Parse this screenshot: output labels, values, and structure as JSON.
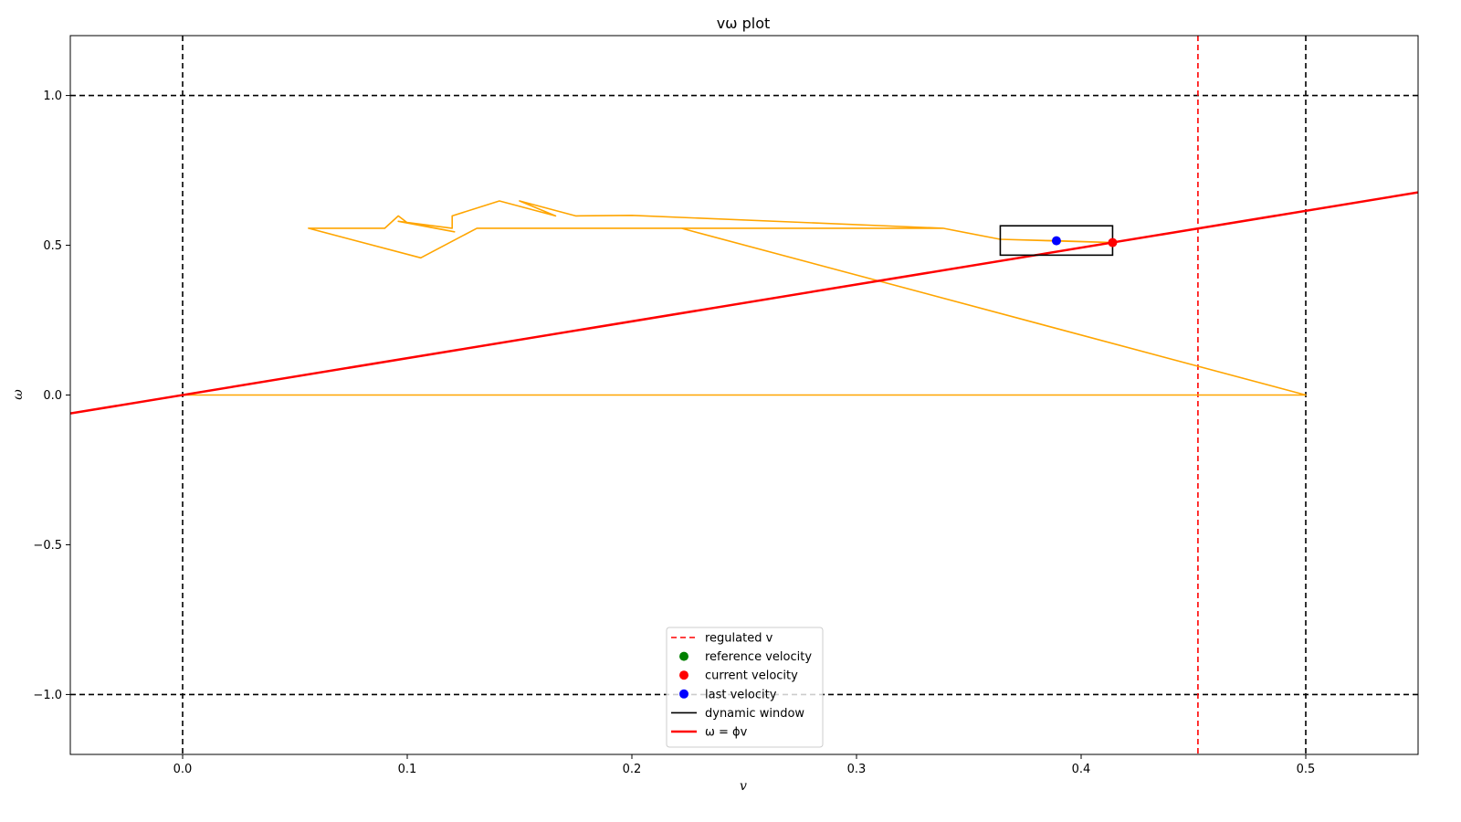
{
  "chart_data": {
    "type": "line",
    "title": "vω plot",
    "xlabel": "v",
    "ylabel": "ω",
    "xlim": [
      -0.05,
      0.55
    ],
    "ylim": [
      -1.2,
      1.2
    ],
    "x_ticks": [
      0.0,
      0.1,
      0.2,
      0.3,
      0.4,
      0.5
    ],
    "x_tick_labels": [
      "0.0",
      "0.1",
      "0.2",
      "0.3",
      "0.4",
      "0.5"
    ],
    "y_ticks": [
      -1.0,
      -0.5,
      0.0,
      0.5,
      1.0
    ],
    "y_tick_labels": [
      "−1.0",
      "−0.5",
      "0.0",
      "0.5",
      "1.0"
    ],
    "grid": false,
    "legend_position": "lower center",
    "colors": {
      "trajectory": "#ffa500",
      "regulated": "#ff0000",
      "bounds": "#000000",
      "reference": "#008000",
      "current": "#ff0000",
      "last": "#0000ff",
      "window": "#000000",
      "phi_line": "#ff0000"
    },
    "bounds": {
      "v": [
        0.0,
        0.5
      ],
      "omega": [
        -1.0,
        1.0
      ]
    },
    "regulated_v": 0.452,
    "phi": 1.23,
    "dynamic_window": {
      "v": [
        0.364,
        0.414
      ],
      "omega": [
        0.467,
        0.565
      ]
    },
    "current_velocity": {
      "v": 0.414,
      "omega": 0.509
    },
    "last_velocity": {
      "v": 0.389,
      "omega": 0.515
    },
    "reference_velocity": null,
    "trajectory": [
      [
        0.0,
        0.0
      ],
      [
        0.5,
        0.0
      ],
      [
        0.222,
        0.557
      ],
      [
        0.3385,
        0.557
      ],
      [
        0.364,
        0.52
      ],
      [
        0.389,
        0.515
      ],
      [
        0.414,
        0.509
      ],
      [
        0.364,
        0.52
      ],
      [
        0.3385,
        0.557
      ],
      [
        0.2,
        0.6
      ],
      [
        0.175,
        0.598
      ],
      [
        0.15,
        0.648
      ],
      [
        0.166,
        0.598
      ],
      [
        0.141,
        0.648
      ],
      [
        0.12,
        0.598
      ],
      [
        0.12,
        0.557
      ],
      [
        0.096,
        0.58
      ],
      [
        0.121,
        0.545
      ],
      [
        0.1,
        0.575
      ],
      [
        0.096,
        0.598
      ],
      [
        0.09,
        0.557
      ],
      [
        0.056,
        0.557
      ],
      [
        0.106,
        0.458
      ],
      [
        0.131,
        0.557
      ],
      [
        0.222,
        0.557
      ]
    ],
    "legend": [
      {
        "label": "regulated v",
        "kind": "dashed",
        "color": "#ff0000"
      },
      {
        "label": "reference velocity",
        "kind": "dot",
        "color": "#008000"
      },
      {
        "label": "current velocity",
        "kind": "dot",
        "color": "#ff0000"
      },
      {
        "label": "last velocity",
        "kind": "dot",
        "color": "#0000ff"
      },
      {
        "label": "dynamic window",
        "kind": "line",
        "color": "#000000"
      },
      {
        "label": "ω = ϕv",
        "kind": "thick",
        "color": "#ff0000"
      }
    ]
  }
}
